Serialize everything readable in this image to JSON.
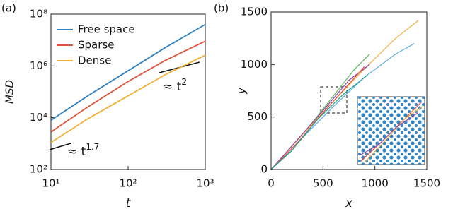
{
  "chart_data": [
    {
      "type": "line",
      "panel_label": "(a)",
      "x_label": "t",
      "y_label": "MSD",
      "xscale": "log",
      "yscale": "log",
      "xlim": [
        10,
        1000
      ],
      "ylim": [
        100,
        100000000
      ],
      "xticks": [
        {
          "value": 10,
          "label": "10¹"
        },
        {
          "value": 100,
          "label": "10²"
        },
        {
          "value": 1000,
          "label": "10³"
        }
      ],
      "yticks": [
        {
          "value": 100,
          "label": "10²"
        },
        {
          "value": 10000,
          "label": "10⁴"
        },
        {
          "value": 1000000,
          "label": "10⁶"
        },
        {
          "value": 100000000,
          "label": "10⁸"
        }
      ],
      "legend": "upper left",
      "x": [
        10,
        30,
        100,
        300,
        1000
      ],
      "series": [
        {
          "name": "Free space",
          "color": "#2f7fc1",
          "values": [
            8000,
            70000,
            650000,
            5000000,
            40000000
          ]
        },
        {
          "name": "Sparse",
          "color": "#e0533a",
          "values": [
            2800,
            26000,
            250000,
            1600000,
            9000000
          ]
        },
        {
          "name": "Dense",
          "color": "#f2b134",
          "values": [
            1100,
            9000,
            70000,
            450000,
            2600000
          ]
        }
      ],
      "annotations": [
        {
          "text": "≈ t",
          "sup": "2"
        },
        {
          "text": "≈ t",
          "sup": "1.7"
        }
      ]
    },
    {
      "type": "scatter-line",
      "panel_label": "(b)",
      "x_label": "x",
      "y_label": "y",
      "xlim": [
        0,
        1500
      ],
      "ylim": [
        0,
        1500
      ],
      "xticks": [
        0,
        500,
        1000,
        1500
      ],
      "yticks": [
        0,
        500,
        1000,
        1500
      ],
      "series": [
        {
          "color": "#5cb85c",
          "x": [
            0,
            200,
            400,
            600,
            800,
            950
          ],
          "values": [
            0,
            220,
            450,
            700,
            950,
            1100
          ]
        },
        {
          "color": "#f5b041",
          "x": [
            0,
            300,
            600,
            900,
            1200,
            1420
          ],
          "values": [
            0,
            330,
            650,
            960,
            1250,
            1420
          ]
        },
        {
          "color": "#5dade2",
          "x": [
            0,
            300,
            600,
            900,
            1200,
            1380
          ],
          "values": [
            0,
            300,
            600,
            880,
            1100,
            1200
          ]
        },
        {
          "color": "#8e44ad",
          "x": [
            0,
            250,
            500,
            750,
            950
          ],
          "values": [
            0,
            280,
            560,
            850,
            1000
          ]
        },
        {
          "color": "#e74c3c",
          "x": [
            0,
            250,
            500,
            700,
            900
          ],
          "values": [
            0,
            250,
            540,
            760,
            980
          ]
        },
        {
          "color": "#17a589",
          "x": [
            0,
            200,
            450,
            700,
            930
          ],
          "values": [
            0,
            180,
            480,
            720,
            900
          ]
        }
      ]
    }
  ]
}
